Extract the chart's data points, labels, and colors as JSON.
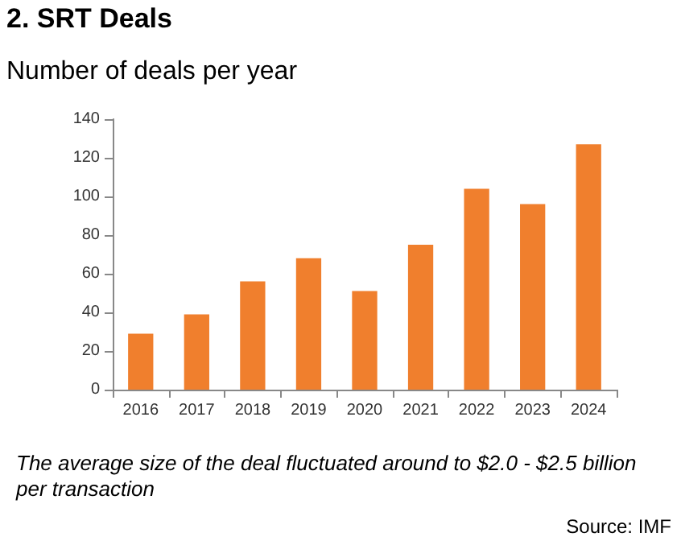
{
  "chart_data": {
    "type": "bar",
    "title": "2. SRT Deals",
    "subtitle": "Number of deals per year",
    "categories": [
      "2016",
      "2017",
      "2018",
      "2019",
      "2020",
      "2021",
      "2022",
      "2023",
      "2024"
    ],
    "values": [
      29,
      39,
      56,
      68,
      51,
      75,
      104,
      96,
      127
    ],
    "color": "#f07f2d",
    "ylim": [
      0,
      140
    ],
    "yticks": [
      0,
      20,
      40,
      60,
      80,
      100,
      120,
      140
    ],
    "grid": false,
    "annotations": [
      "The average size of the deal fluctuated around to $2.0 - $2.5 billion per transaction",
      "Source: IMF"
    ]
  }
}
